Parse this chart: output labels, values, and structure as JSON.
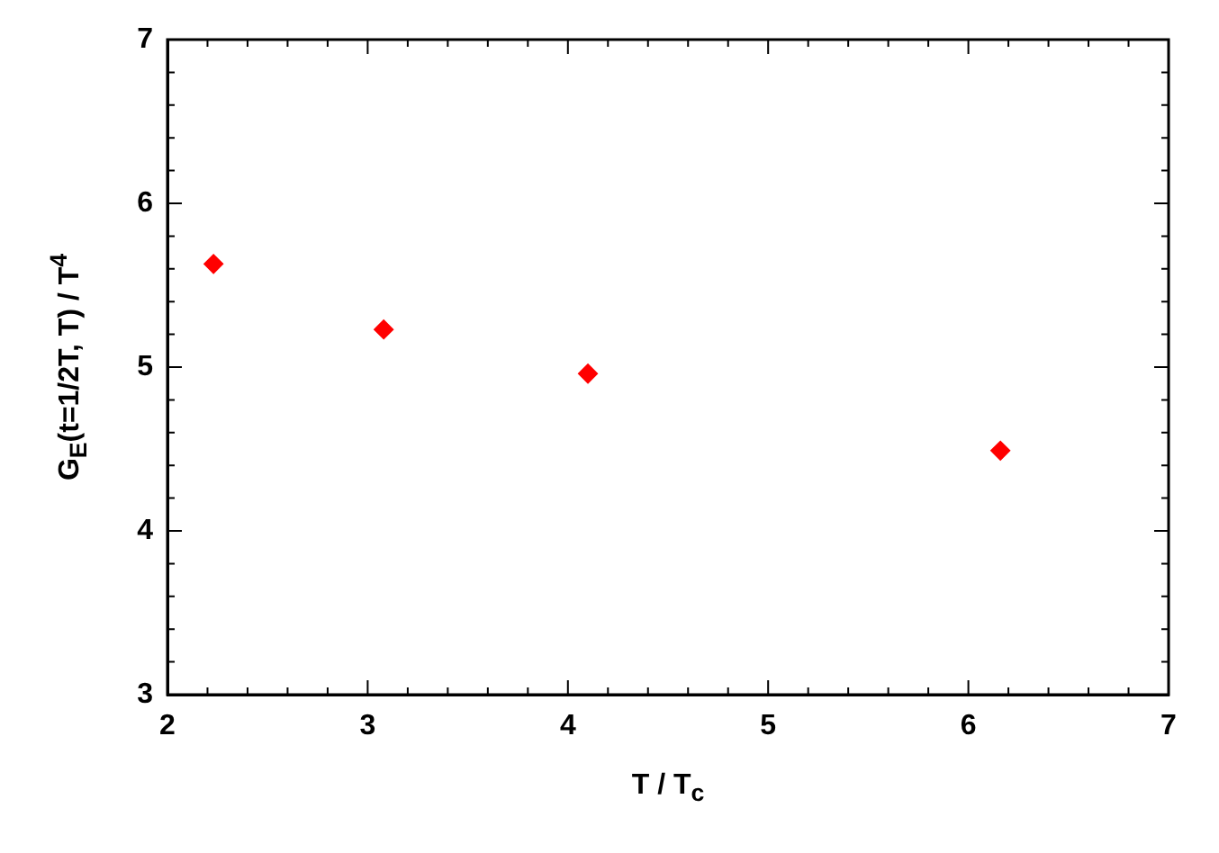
{
  "chart_data": {
    "type": "scatter",
    "xlabel": "T / T$_{c}$",
    "ylabel": "G$_{E}$(t=1/2T, T) / T$^{4}$",
    "x": [
      2.23,
      3.08,
      4.1,
      6.16
    ],
    "series": [
      {
        "color": "#ff0000",
        "values": [
          5.63,
          5.23,
          4.96,
          4.49
        ]
      }
    ],
    "marker": "diamond",
    "grid": false,
    "legend": false,
    "xlim": [
      2,
      7
    ],
    "ylim": [
      3,
      7
    ],
    "xticks": [
      2,
      {
        "value": 2.2,
        "label": null
      },
      {
        "value": 2.4,
        "label": null
      },
      {
        "value": 2.6,
        "label": null
      },
      {
        "value": 2.8,
        "label": null
      },
      3,
      {
        "value": 3.2,
        "label": null
      },
      {
        "value": 3.4,
        "label": null
      },
      {
        "value": 3.6,
        "label": null
      },
      {
        "value": 3.8,
        "label": null
      },
      4,
      {
        "value": 4.2,
        "label": null
      },
      {
        "value": 4.4,
        "label": null
      },
      {
        "value": 4.6,
        "label": null
      },
      {
        "value": 4.8,
        "label": null
      },
      5,
      {
        "value": 5.2,
        "label": null
      },
      {
        "value": 5.4,
        "label": null
      },
      {
        "value": 5.6,
        "label": null
      },
      {
        "value": 5.8,
        "label": null
      },
      6,
      {
        "value": 6.2,
        "label": null
      },
      {
        "value": 6.4,
        "label": null
      },
      {
        "value": 6.6,
        "label": null
      },
      {
        "value": 6.8,
        "label": null
      },
      7
    ],
    "yticks": [
      3,
      {
        "value": 3.2,
        "label": null
      },
      {
        "value": 3.4,
        "label": null
      },
      {
        "value": 3.6,
        "label": null
      },
      {
        "value": 3.8,
        "label": null
      },
      4,
      {
        "value": 4.2,
        "label": null
      },
      {
        "value": 4.4,
        "label": null
      },
      {
        "value": 4.6,
        "label": null
      },
      {
        "value": 4.8,
        "label": null
      },
      5,
      {
        "value": 5.2,
        "label": null
      },
      {
        "value": 5.4,
        "label": null
      },
      {
        "value": 5.6,
        "label": null
      },
      {
        "value": 5.8,
        "label": null
      },
      6,
      {
        "value": 6.2,
        "label": null
      },
      {
        "value": 6.4,
        "label": null
      },
      {
        "value": 6.6,
        "label": null
      },
      {
        "value": 6.8,
        "label": null
      },
      7
    ]
  }
}
